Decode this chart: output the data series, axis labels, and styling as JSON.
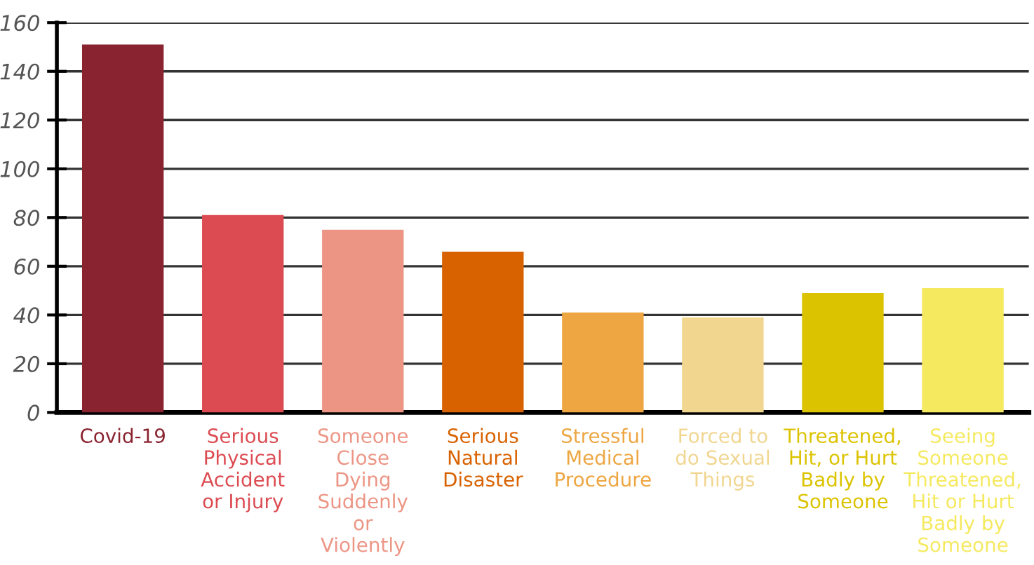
{
  "chart_data": {
    "type": "bar",
    "categories": [
      "Covid-19",
      "Serious\nPhysical\nAccident\nor Injury",
      "Someone\nClose\nDying\nSuddenly\nor\nViolently",
      "Serious\nNatural\nDisaster",
      "Stressful\nMedical\nProcedure",
      "Forced to\ndo Sexual\nThings",
      "Threatened,\nHit, or Hurt\nBadly by\nSomeone",
      "Seeing\nSomeone\nThreatened,\nHit or Hurt\nBadly by\nSomeone"
    ],
    "values": [
      151,
      81,
      75,
      66,
      41,
      39,
      49,
      51
    ],
    "colors": [
      "#8a2330",
      "#dc4b51",
      "#ed9585",
      "#d96200",
      "#eda642",
      "#f1d690",
      "#dcc300",
      "#f5e95f"
    ],
    "ylim": [
      0,
      160
    ],
    "yticks": [
      0,
      20,
      40,
      60,
      80,
      100,
      120,
      140,
      160
    ],
    "grid": "y",
    "legend": false
  }
}
